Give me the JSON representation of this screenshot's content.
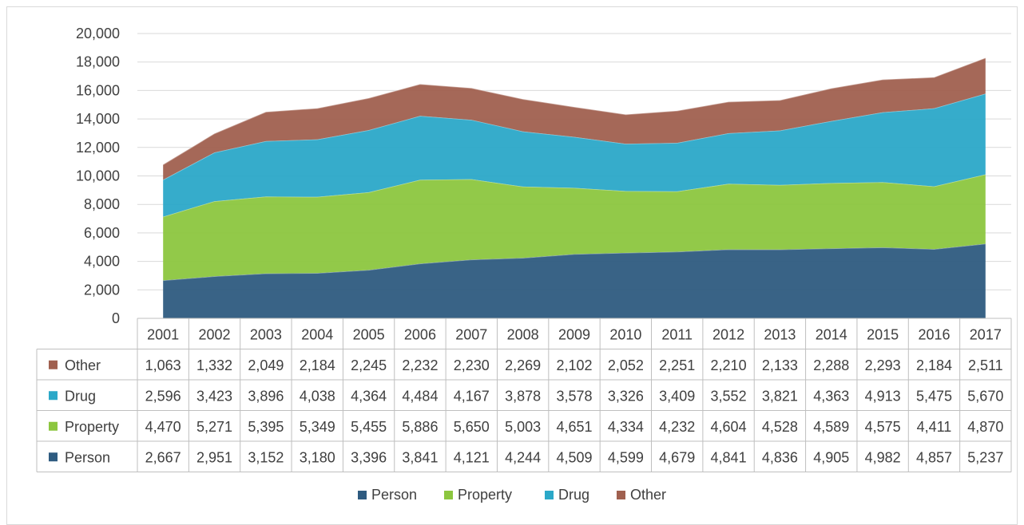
{
  "chart_data": {
    "type": "area",
    "stacked": true,
    "title": "",
    "xlabel": "",
    "ylabel": "",
    "ylim": [
      0,
      20000
    ],
    "yticks": [
      0,
      2000,
      4000,
      6000,
      8000,
      10000,
      12000,
      14000,
      16000,
      18000,
      20000
    ],
    "ytick_labels": [
      "0",
      "2,000",
      "4,000",
      "6,000",
      "8,000",
      "10,000",
      "12,000",
      "14,000",
      "16,000",
      "18,000",
      "20,000"
    ],
    "grid": true,
    "legend_position": "bottom",
    "categories": [
      "2001",
      "2002",
      "2003",
      "2004",
      "2005",
      "2006",
      "2007",
      "2008",
      "2009",
      "2010",
      "2011",
      "2012",
      "2013",
      "2014",
      "2015",
      "2016",
      "2017"
    ],
    "series": [
      {
        "name": "Person",
        "color": "#2e5b80",
        "values": [
          2667,
          2951,
          3152,
          3180,
          3396,
          3841,
          4121,
          4244,
          4509,
          4599,
          4679,
          4841,
          4836,
          4905,
          4982,
          4857,
          5237
        ],
        "labels": [
          "2,667",
          "2,951",
          "3,152",
          "3,180",
          "3,396",
          "3,841",
          "4,121",
          "4,244",
          "4,509",
          "4,599",
          "4,679",
          "4,841",
          "4,836",
          "4,905",
          "4,982",
          "4,857",
          "5,237"
        ]
      },
      {
        "name": "Property",
        "color": "#8cc63f",
        "values": [
          4470,
          5271,
          5395,
          5349,
          5455,
          5886,
          5650,
          5003,
          4651,
          4334,
          4232,
          4604,
          4528,
          4589,
          4575,
          4411,
          4870
        ],
        "labels": [
          "4,470",
          "5,271",
          "5,395",
          "5,349",
          "5,455",
          "5,886",
          "5,650",
          "5,003",
          "4,651",
          "4,334",
          "4,232",
          "4,604",
          "4,528",
          "4,589",
          "4,575",
          "4,411",
          "4,870"
        ]
      },
      {
        "name": "Drug",
        "color": "#2ba8c8",
        "values": [
          2596,
          3423,
          3896,
          4038,
          4364,
          4484,
          4167,
          3878,
          3578,
          3326,
          3409,
          3552,
          3821,
          4363,
          4913,
          5475,
          5670
        ],
        "labels": [
          "2,596",
          "3,423",
          "3,896",
          "4,038",
          "4,364",
          "4,484",
          "4,167",
          "3,878",
          "3,578",
          "3,326",
          "3,409",
          "3,552",
          "3,821",
          "4,363",
          "4,913",
          "5,475",
          "5,670"
        ]
      },
      {
        "name": "Other",
        "color": "#a0604f",
        "values": [
          1063,
          1332,
          2049,
          2184,
          2245,
          2232,
          2230,
          2269,
          2102,
          2052,
          2251,
          2210,
          2133,
          2288,
          2293,
          2184,
          2511
        ],
        "labels": [
          "1,063",
          "1,332",
          "2,049",
          "2,184",
          "2,245",
          "2,232",
          "2,230",
          "2,269",
          "2,102",
          "2,052",
          "2,251",
          "2,210",
          "2,133",
          "2,288",
          "2,293",
          "2,184",
          "2,511"
        ]
      }
    ],
    "table_row_order": [
      "Other",
      "Drug",
      "Property",
      "Person"
    ]
  }
}
